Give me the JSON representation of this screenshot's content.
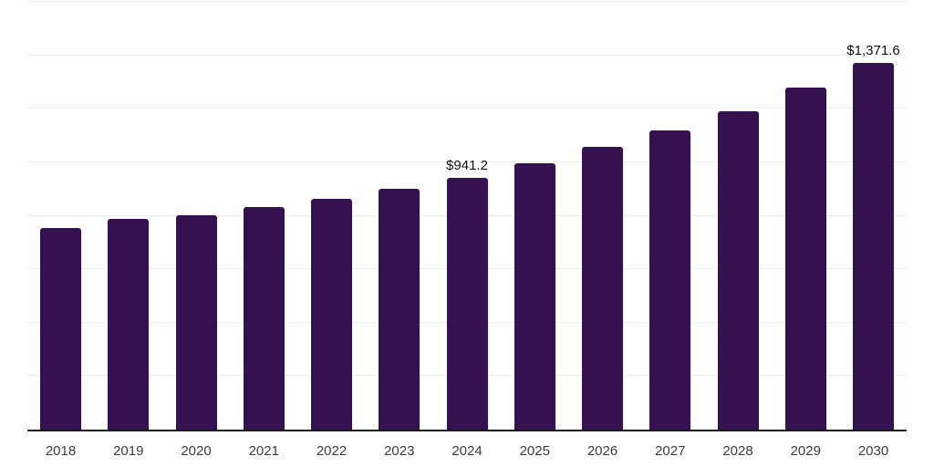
{
  "chart_data": {
    "type": "bar",
    "title": "",
    "categories": [
      "2018",
      "2019",
      "2020",
      "2021",
      "2022",
      "2023",
      "2024",
      "2025",
      "2026",
      "2027",
      "2028",
      "2029",
      "2030"
    ],
    "values": [
      755,
      788,
      803,
      833,
      864,
      899,
      941.2,
      995,
      1058,
      1118,
      1189,
      1278,
      1371.6
    ],
    "bar_labels": [
      "",
      "",
      "",
      "",
      "",
      "",
      "$941.2",
      "",
      "",
      "",
      "",
      "",
      "$1,371.6"
    ],
    "xlabel": "",
    "ylabel": "",
    "ylim": [
      0,
      1600
    ],
    "gridline_step": 200,
    "grid": true,
    "legend": false,
    "colors": {
      "bar": "#36114F",
      "grid": "#ededf2",
      "axis_line": "#1a1a1a",
      "tick_label": "#3d3d3d",
      "data_label": "#111111",
      "background": "#ffffff"
    }
  }
}
